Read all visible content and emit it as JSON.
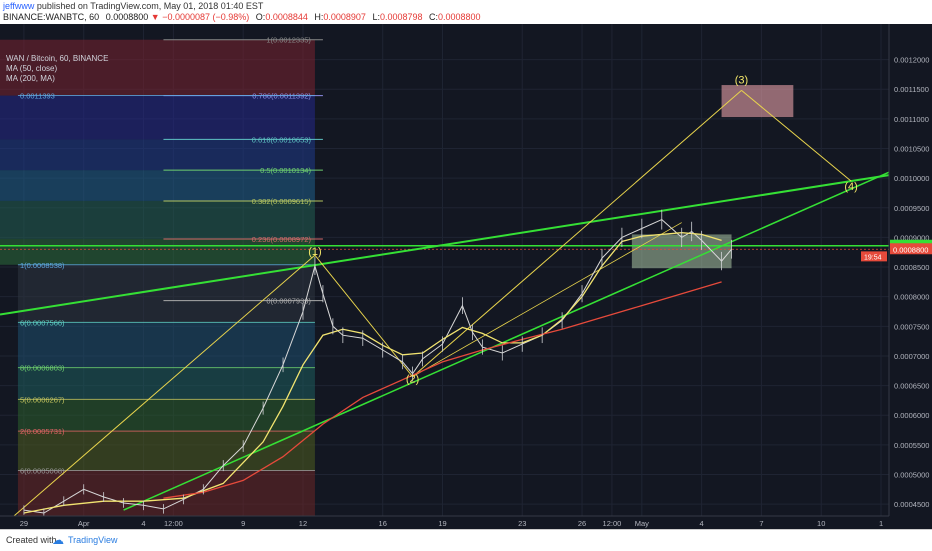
{
  "header": {
    "author": "jeffwww",
    "published_text": "published on TradingView.com, May 01, 2018 01:40 EST",
    "symbol_text": "BINANCE:WANBTC, 60",
    "price": "0.0008800",
    "arrow": "▼",
    "change": "−0.0000087 (−0.98%)",
    "o_label": "O:",
    "o_value": "0.0008844",
    "h_label": "H:",
    "h_value": "0.0008907",
    "l_label": "L:",
    "l_value": "0.0008798",
    "c_label": "C:",
    "c_value": "0.0008800"
  },
  "legend": {
    "title": "WAN / Bitcoin, 60, BINANCE",
    "ma1": "MA (50, close)",
    "ma2": "MA (200, MA)"
  },
  "footer": {
    "created_with": "Created with",
    "brand": "TradingView"
  },
  "colors": {
    "background": "#131722",
    "price_line": "#d8d8d8",
    "ma50": "#f2e470",
    "ma200": "#e64a3b",
    "trendline": "#35e035",
    "wave": "#e8d44d"
  },
  "chart_data": {
    "type": "line",
    "title": "WAN / Bitcoin, 60, BINANCE",
    "ylim": [
      0.00043,
      0.00126
    ],
    "y_ticks": [
      "0.0012000",
      "0.0011500",
      "0.0011000",
      "0.0010500",
      "0.0010000",
      "0.0009500",
      "0.0009000",
      "0.0008500",
      "0.0008000",
      "0.0007500",
      "0.0007000",
      "0.0006500",
      "0.0006000",
      "0.0005500",
      "0.0005000",
      "0.0004500"
    ],
    "y_tick_values": [
      0.0012,
      0.00115,
      0.0011,
      0.00105,
      0.001,
      0.00095,
      0.0009,
      0.00085,
      0.0008,
      0.00075,
      0.0007,
      0.00065,
      0.0006,
      0.00055,
      0.0005,
      0.00045
    ],
    "x_ticks": [
      {
        "label": "29",
        "t": 0
      },
      {
        "label": "Apr",
        "t": 3
      },
      {
        "label": "4",
        "t": 6
      },
      {
        "label": "12:00",
        "t": 7.5
      },
      {
        "label": "9",
        "t": 11
      },
      {
        "label": "12",
        "t": 14
      },
      {
        "label": "16",
        "t": 18
      },
      {
        "label": "19",
        "t": 21
      },
      {
        "label": "23",
        "t": 25
      },
      {
        "label": "26",
        "t": 28
      },
      {
        "label": "12:00",
        "t": 29.5
      },
      {
        "label": "May",
        "t": 31
      },
      {
        "label": "4",
        "t": 34
      },
      {
        "label": "7",
        "t": 37
      },
      {
        "label": "10",
        "t": 40
      },
      {
        "label": "1",
        "t": 43
      }
    ],
    "xlim": [
      -1.2,
      43.4
    ],
    "series": [
      {
        "name": "WANBTC",
        "values": [
          [
            0,
            0.00044
          ],
          [
            1,
            0.000435
          ],
          [
            2,
            0.000455
          ],
          [
            3,
            0.000475
          ],
          [
            4,
            0.000462
          ],
          [
            5,
            0.000452
          ],
          [
            6,
            0.000448
          ],
          [
            7,
            0.000442
          ],
          [
            8,
            0.000458
          ],
          [
            9,
            0.000475
          ],
          [
            10,
            0.000515
          ],
          [
            11,
            0.000548
          ],
          [
            12,
            0.000612
          ],
          [
            13,
            0.000685
          ],
          [
            14,
            0.000775
          ],
          [
            14.6,
            0.000852
          ],
          [
            15,
            0.000805
          ],
          [
            15.5,
            0.00075
          ],
          [
            16,
            0.000735
          ],
          [
            17,
            0.00073
          ],
          [
            18,
            0.00071
          ],
          [
            19,
            0.00069
          ],
          [
            19.5,
            0.00067
          ],
          [
            20,
            0.000695
          ],
          [
            21,
            0.00072
          ],
          [
            22,
            0.000785
          ],
          [
            22.5,
            0.00074
          ],
          [
            23,
            0.000715
          ],
          [
            24,
            0.000705
          ],
          [
            25,
            0.00072
          ],
          [
            26,
            0.000735
          ],
          [
            27,
            0.00076
          ],
          [
            28,
            0.000805
          ],
          [
            29,
            0.000865
          ],
          [
            30,
            0.0009
          ],
          [
            31,
            0.000915
          ],
          [
            32,
            0.00093
          ],
          [
            33,
            0.0009
          ],
          [
            33.5,
            0.00091
          ],
          [
            34,
            0.000895
          ],
          [
            35,
            0.00086
          ],
          [
            35.5,
            0.00088
          ]
        ]
      },
      {
        "name": "MA (50, close)",
        "values": [
          [
            0,
            0.000435
          ],
          [
            2,
            0.000448
          ],
          [
            4,
            0.000455
          ],
          [
            6,
            0.000455
          ],
          [
            8,
            0.00046
          ],
          [
            10,
            0.000485
          ],
          [
            12,
            0.000555
          ],
          [
            13,
            0.000615
          ],
          [
            14,
            0.000685
          ],
          [
            15,
            0.000735
          ],
          [
            16,
            0.000745
          ],
          [
            17,
            0.000738
          ],
          [
            18,
            0.000718
          ],
          [
            19,
            0.000702
          ],
          [
            20,
            0.000705
          ],
          [
            21,
            0.000728
          ],
          [
            22,
            0.000748
          ],
          [
            23,
            0.000738
          ],
          [
            24,
            0.000722
          ],
          [
            25,
            0.000722
          ],
          [
            26,
            0.000735
          ],
          [
            27,
            0.000762
          ],
          [
            28,
            0.0008
          ],
          [
            29,
            0.000852
          ],
          [
            30,
            0.000893
          ],
          [
            31,
            0.000902
          ],
          [
            32,
            0.000905
          ],
          [
            33,
            0.000908
          ],
          [
            34,
            0.000905
          ],
          [
            35,
            0.000895
          ]
        ]
      },
      {
        "name": "MA (200, MA)",
        "values": [
          [
            7,
            0.00046
          ],
          [
            9,
            0.00047
          ],
          [
            11,
            0.00049
          ],
          [
            13,
            0.00053
          ],
          [
            15,
            0.000585
          ],
          [
            17,
            0.00063
          ],
          [
            19,
            0.00066
          ],
          [
            21,
            0.00069
          ],
          [
            23,
            0.00071
          ],
          [
            25,
            0.000728
          ],
          [
            27,
            0.000745
          ],
          [
            29,
            0.000765
          ],
          [
            31,
            0.000785
          ],
          [
            33,
            0.000805
          ],
          [
            35,
            0.000825
          ]
        ]
      }
    ],
    "fibonacci": [
      {
        "label": "1(0.0012335)",
        "ratio": "1",
        "value": 0.0012335
      },
      {
        "label": "0.786(0.0011392)",
        "ratio": "0.786",
        "value": 0.0011392
      },
      {
        "label": "0.618(0.0010653)",
        "ratio": "0.618",
        "value": 0.0010653
      },
      {
        "label": "0.5(0.0010134)",
        "ratio": "0.5",
        "value": 0.0010134
      },
      {
        "label": "0.382(0.0009615)",
        "ratio": "0.382",
        "value": 0.0009615
      },
      {
        "label": "0.236(0.0008972)",
        "ratio": "0.236",
        "value": 0.0008972
      },
      {
        "label": "0(0.0007933)",
        "ratio": "0",
        "value": 0.0007933
      }
    ],
    "left_fib_labels": [
      {
        "label": "0.0011393",
        "value": 0.0011393
      },
      {
        "label": "1(0.0008538)",
        "value": 0.0008538
      },
      {
        "label": "6(0.0007566)",
        "value": 0.0007566
      },
      {
        "label": "8(0.0006803)",
        "value": 0.0006803
      },
      {
        "label": "5(0.0006267)",
        "value": 0.0006267
      },
      {
        "label": "2(0.0005731)",
        "value": 0.0005731
      },
      {
        "label": "6(0.0005068)",
        "value": 0.0005068
      }
    ],
    "wave_labels": [
      {
        "label": "(1)",
        "t": 14.6,
        "value": 0.00087
      },
      {
        "label": "(2)",
        "t": 19.5,
        "value": 0.000655
      },
      {
        "label": "(3)",
        "t": 36,
        "value": 0.00116
      },
      {
        "label": "(4)",
        "t": 41.5,
        "value": 0.00098
      }
    ],
    "last_price_label": "0.0008800",
    "countdown_label": "19:54",
    "level_label": "0.0008859"
  }
}
